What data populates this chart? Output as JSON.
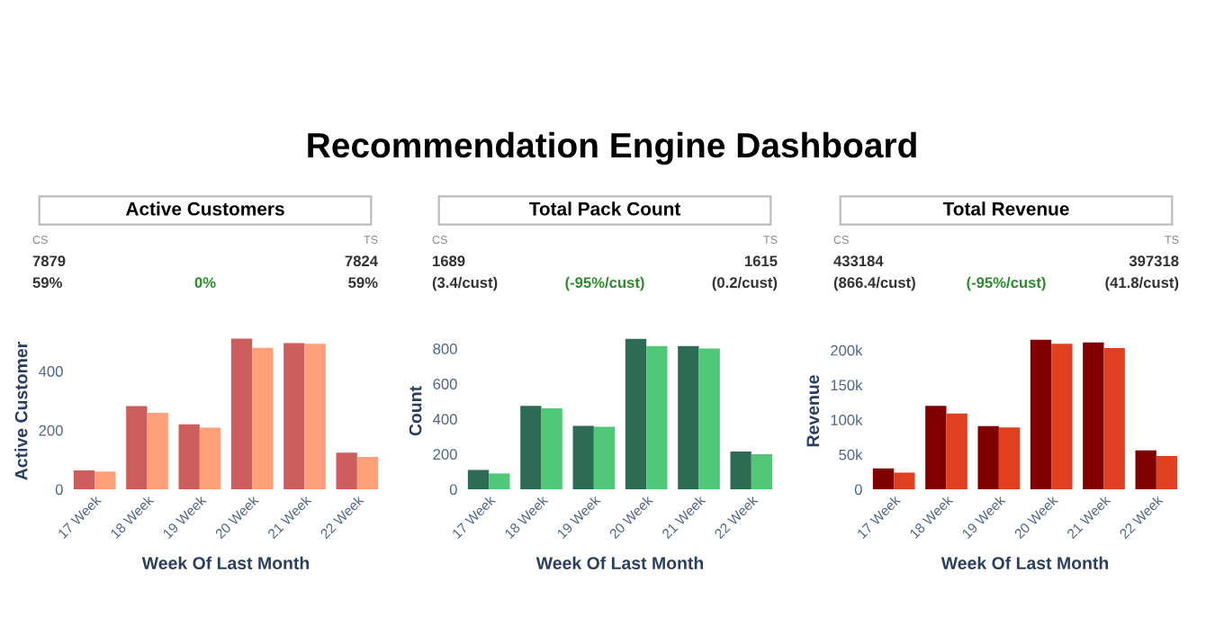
{
  "chart_data": [
    {
      "type": "other",
      "title": "Recommendation Engine Dashboard"
    },
    {
      "type": "other",
      "title": "Active Customers",
      "annotations": [
        "CS",
        "TS",
        "7879",
        "7824",
        "59%",
        "0%",
        "59%"
      ]
    },
    {
      "type": "other",
      "title": "Total Pack Count",
      "annotations": [
        "CS",
        "TS",
        "1689",
        "1615",
        "(3.4/cust)",
        "(-95%/cust)",
        "(0.2/cust)"
      ]
    },
    {
      "type": "other",
      "title": "Total Revenue",
      "annotations": [
        "CS",
        "TS",
        "433184",
        "397318",
        "(866.4/cust)",
        "(-95%/cust)",
        "(41.8/cust)"
      ]
    },
    {
      "type": "bar",
      "xlabel": "Week Of Last Month",
      "ylabel": "Active Customer",
      "categories": [
        "17 Week",
        "18 Week",
        "19 Week",
        "20 Week",
        "21 Week",
        "22 Week"
      ],
      "series": [
        {
          "color": "#cd5c5c",
          "values": [
            64,
            282,
            220,
            510,
            495,
            124
          ]
        },
        {
          "color": "#ffa07a",
          "values": [
            60,
            259,
            209,
            479,
            493,
            110
          ]
        }
      ],
      "ylim": [
        0,
        530
      ],
      "yticks": [
        0,
        200,
        400
      ]
    },
    {
      "type": "bar",
      "xlabel": "Week Of Last Month",
      "ylabel": "Count",
      "categories": [
        "17 Week",
        "18 Week",
        "19 Week",
        "20 Week",
        "21 Week",
        "22 Week"
      ],
      "series": [
        {
          "color": "#2e6b55",
          "values": [
            110,
            475,
            360,
            855,
            815,
            215
          ]
        },
        {
          "color": "#50c878",
          "values": [
            90,
            460,
            355,
            815,
            800,
            200
          ]
        }
      ],
      "ylim": [
        0,
        890
      ],
      "yticks": [
        0,
        200,
        400,
        600,
        800
      ]
    },
    {
      "type": "bar",
      "xlabel": "Week Of Last Month",
      "ylabel": "Revenue",
      "categories": [
        "17 Week",
        "18 Week",
        "19 Week",
        "20 Week",
        "21 Week",
        "22 Week"
      ],
      "series": [
        {
          "color": "#800000",
          "values": [
            30000,
            120000,
            91000,
            215000,
            211000,
            56000
          ]
        },
        {
          "color": "#e0401f",
          "values": [
            24000,
            109000,
            89000,
            209000,
            203000,
            48000
          ]
        }
      ],
      "ylim": [
        0,
        225000
      ],
      "yticks": [
        0,
        {
          "value": 50000,
          "label": "50k"
        },
        {
          "value": 100000,
          "label": "100k"
        },
        {
          "value": 150000,
          "label": "150k"
        },
        {
          "value": 200000,
          "label": "200k"
        }
      ]
    }
  ]
}
